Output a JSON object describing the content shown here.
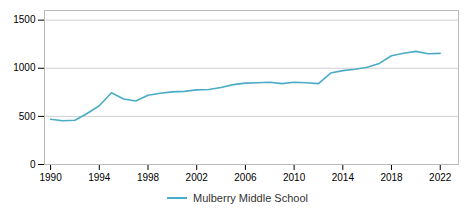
{
  "chart_data": {
    "type": "line",
    "x": [
      1990,
      1991,
      1992,
      1993,
      1994,
      1995,
      1996,
      1997,
      1998,
      1999,
      2000,
      2001,
      2002,
      2003,
      2004,
      2005,
      2006,
      2007,
      2008,
      2009,
      2010,
      2011,
      2012,
      2013,
      2014,
      2015,
      2016,
      2017,
      2018,
      2019,
      2020,
      2021,
      2022
    ],
    "series": [
      {
        "name": "Mulberry Middle School",
        "color": "#4bacc6",
        "values": [
          470,
          455,
          460,
          530,
          610,
          745,
          680,
          660,
          720,
          740,
          755,
          760,
          775,
          780,
          800,
          830,
          845,
          850,
          855,
          840,
          855,
          850,
          840,
          950,
          975,
          990,
          1010,
          1050,
          1130,
          1155,
          1175,
          1150,
          1155
        ]
      }
    ],
    "xlim": [
      1989.5,
      2023.5
    ],
    "xticks": [
      1990,
      1994,
      1998,
      2002,
      2006,
      2010,
      2014,
      2018,
      2022
    ],
    "ylim": [
      0,
      1600
    ],
    "yticks": [
      0,
      500,
      1000,
      1500
    ],
    "grid": true,
    "legend": "bottom"
  }
}
